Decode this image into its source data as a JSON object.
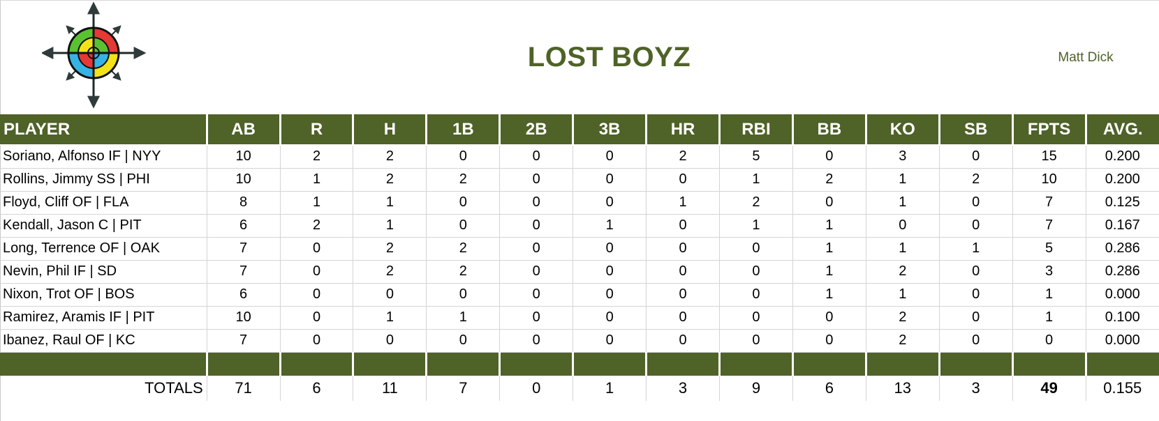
{
  "header": {
    "team_name": "LOST BOYZ",
    "owner": "Matt Dick"
  },
  "table": {
    "columns": [
      "PLAYER",
      "AB",
      "R",
      "H",
      "1B",
      "2B",
      "3B",
      "HR",
      "RBI",
      "BB",
      "KO",
      "SB",
      "FPTS",
      "AVG."
    ],
    "rows": [
      [
        "Soriano, Alfonso IF | NYY",
        "10",
        "2",
        "2",
        "0",
        "0",
        "0",
        "2",
        "5",
        "0",
        "3",
        "0",
        "15",
        "0.200"
      ],
      [
        "Rollins, Jimmy SS | PHI",
        "10",
        "1",
        "2",
        "2",
        "0",
        "0",
        "0",
        "1",
        "2",
        "1",
        "2",
        "10",
        "0.200"
      ],
      [
        "Floyd, Cliff OF | FLA",
        "8",
        "1",
        "1",
        "0",
        "0",
        "0",
        "1",
        "2",
        "0",
        "1",
        "0",
        "7",
        "0.125"
      ],
      [
        "Kendall, Jason C | PIT",
        "6",
        "2",
        "1",
        "0",
        "0",
        "1",
        "0",
        "1",
        "1",
        "0",
        "0",
        "7",
        "0.167"
      ],
      [
        "Long, Terrence OF | OAK",
        "7",
        "0",
        "2",
        "2",
        "0",
        "0",
        "0",
        "0",
        "1",
        "1",
        "1",
        "5",
        "0.286"
      ],
      [
        "Nevin, Phil IF | SD",
        "7",
        "0",
        "2",
        "2",
        "0",
        "0",
        "0",
        "0",
        "1",
        "2",
        "0",
        "3",
        "0.286"
      ],
      [
        "Nixon, Trot OF | BOS",
        "6",
        "0",
        "0",
        "0",
        "0",
        "0",
        "0",
        "0",
        "1",
        "1",
        "0",
        "1",
        "0.000"
      ],
      [
        "Ramirez, Aramis IF | PIT",
        "10",
        "0",
        "1",
        "1",
        "0",
        "0",
        "0",
        "0",
        "0",
        "2",
        "0",
        "1",
        "0.100"
      ],
      [
        "Ibanez, Raul OF | KC",
        "7",
        "0",
        "0",
        "0",
        "0",
        "0",
        "0",
        "0",
        "0",
        "2",
        "0",
        "0",
        "0.000"
      ]
    ],
    "totals": [
      "TOTALS",
      "71",
      "6",
      "11",
      "7",
      "0",
      "1",
      "3",
      "9",
      "6",
      "13",
      "3",
      "49",
      "0.155"
    ]
  },
  "colors": {
    "header_bg": "#4f6228",
    "title_text": "#4f6228",
    "logo_quadrants": [
      "#e53935",
      "#f4e218",
      "#35b3e5",
      "#5ac231"
    ]
  },
  "icons": {
    "logo": "compass-target-icon"
  }
}
